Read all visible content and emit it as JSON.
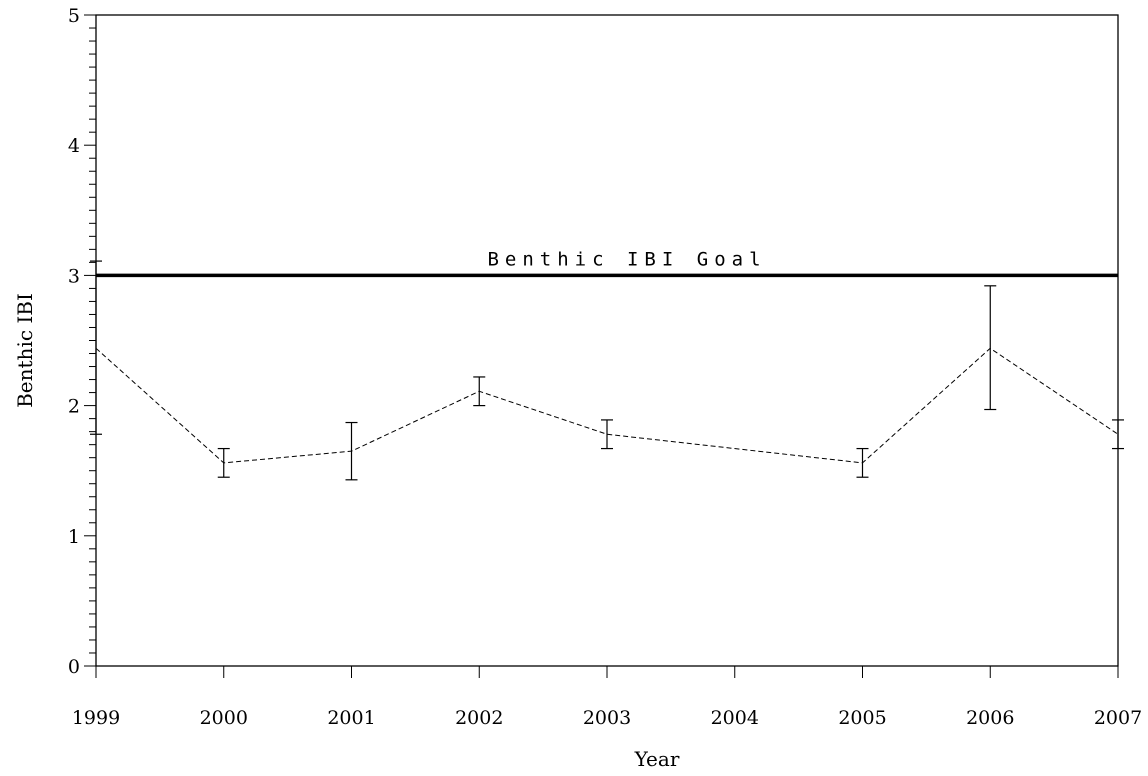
{
  "chart_data": {
    "type": "line",
    "xlabel": "Year",
    "ylabel": "Benthic IBI",
    "xlim": [
      1999,
      2007
    ],
    "ylim": [
      0,
      5
    ],
    "x_ticks": [
      "1999",
      "2000",
      "2001",
      "2002",
      "2003",
      "2004",
      "2005",
      "2006",
      "2007"
    ],
    "y_ticks": [
      "0",
      "1",
      "2",
      "3",
      "4",
      "5"
    ],
    "y_minor_step": 0.1,
    "grid": false,
    "goal": {
      "label": "Benthic IBI Goal",
      "value": 3.0
    },
    "series": [
      {
        "style": "dashed",
        "points": [
          {
            "x": 1999,
            "y": 2.44,
            "low": 1.78,
            "high": 3.11
          },
          {
            "x": 2000,
            "y": 1.56,
            "low": 1.45,
            "high": 1.67
          },
          {
            "x": 2001,
            "y": 1.65,
            "low": 1.43,
            "high": 1.87
          },
          {
            "x": 2002,
            "y": 2.11,
            "low": 2.0,
            "high": 2.22
          },
          {
            "x": 2003,
            "y": 1.78,
            "low": 1.67,
            "high": 1.89
          },
          {
            "x": 2005,
            "y": 1.56,
            "low": 1.45,
            "high": 1.67
          },
          {
            "x": 2006,
            "y": 2.44,
            "low": 1.97,
            "high": 2.92
          },
          {
            "x": 2007,
            "y": 1.78,
            "low": 1.67,
            "high": 1.89
          }
        ]
      }
    ]
  }
}
